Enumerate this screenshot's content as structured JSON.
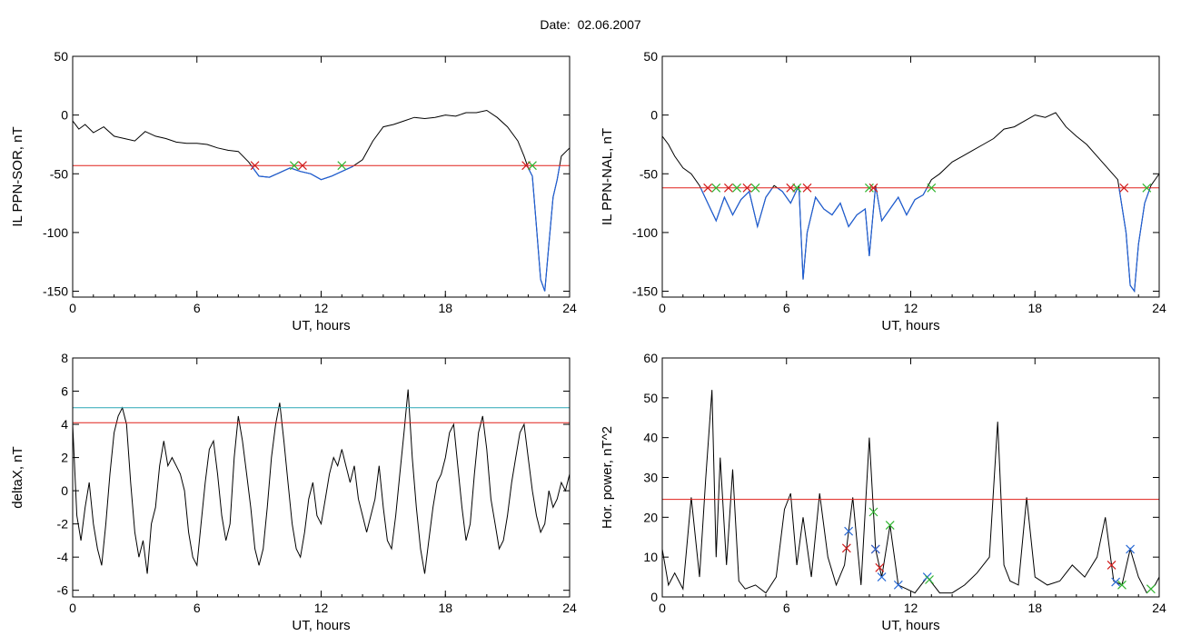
{
  "title": "Date:  02.06.2007",
  "colors": {
    "background": "#ffffff",
    "axis": "#000000",
    "signal": "#000000",
    "below_threshold": "#1f5fd6",
    "threshold_red": "#e0201a",
    "threshold_teal": "#2aa7b5",
    "marker_red": "#d01c1c",
    "marker_green": "#2fb52f",
    "marker_blue": "#2a6bd6"
  },
  "chart_data": [
    {
      "type": "line",
      "xlabel": "UT, hours",
      "ylabel": "IL PPN-SOR, nT",
      "xlim": [
        0,
        24
      ],
      "ylim": [
        -155,
        50
      ],
      "xticks": [
        0,
        6,
        12,
        18,
        24
      ],
      "xtick_labels": [
        "0",
        "6",
        "12",
        "18",
        "24"
      ],
      "yticks": [
        -150,
        -100,
        -50,
        0,
        50
      ],
      "ytick_labels": [
        "-150",
        "-100",
        "-50",
        "0",
        "50"
      ],
      "grid": false,
      "threshold": -43,
      "series": [
        {
          "x": [
            0,
            0.3,
            0.6,
            1,
            1.5,
            2,
            2.5,
            3,
            3.5,
            4,
            4.5,
            5,
            5.5,
            6,
            6.5,
            7,
            7.5,
            8,
            8.5,
            9,
            9.5,
            10,
            10.5,
            11,
            11.5,
            12,
            12.5,
            13,
            13.5,
            14,
            14.5,
            15,
            15.5,
            16,
            16.5,
            17,
            17.5,
            18,
            18.5,
            19,
            19.5,
            20,
            20.5,
            21,
            21.5,
            21.8,
            22,
            22.2,
            22.4,
            22.6,
            22.8,
            23,
            23.2,
            23.4,
            23.6,
            24
          ],
          "y": [
            -5,
            -12,
            -8,
            -15,
            -10,
            -18,
            -20,
            -22,
            -14,
            -18,
            -20,
            -23,
            -24,
            -24,
            -25,
            -28,
            -30,
            -31,
            -40,
            -52,
            -53,
            -49,
            -45,
            -48,
            -50,
            -55,
            -52,
            -48,
            -44,
            -38,
            -22,
            -10,
            -8,
            -5,
            -2,
            -3,
            -2,
            0,
            -1,
            2,
            2,
            4,
            -2,
            -10,
            -22,
            -35,
            -45,
            -52,
            -95,
            -140,
            -150,
            -110,
            -70,
            -55,
            -35,
            -28
          ]
        }
      ],
      "threshold_markers": [
        8.8,
        10.7,
        11.1,
        13.0,
        21.9,
        22.2
      ]
    },
    {
      "type": "line",
      "xlabel": "UT, hours",
      "ylabel": "IL PPN-NAL, nT",
      "xlim": [
        0,
        24
      ],
      "ylim": [
        -155,
        50
      ],
      "xticks": [
        0,
        6,
        12,
        18,
        24
      ],
      "xtick_labels": [
        "0",
        "6",
        "12",
        "18",
        "24"
      ],
      "yticks": [
        -150,
        -100,
        -50,
        0,
        50
      ],
      "ytick_labels": [
        "-150",
        "-100",
        "-50",
        "0",
        "50"
      ],
      "grid": false,
      "threshold": -62,
      "series": [
        {
          "x": [
            0,
            0.3,
            0.6,
            1,
            1.4,
            1.8,
            2.2,
            2.6,
            3,
            3.4,
            3.8,
            4.2,
            4.6,
            5,
            5.4,
            5.8,
            6.2,
            6.6,
            6.8,
            7,
            7.4,
            7.8,
            8.2,
            8.6,
            9,
            9.4,
            9.8,
            10,
            10.3,
            10.6,
            11,
            11.4,
            11.8,
            12.2,
            12.6,
            13,
            13.4,
            14,
            14.5,
            15,
            15.5,
            16,
            16.5,
            17,
            17.5,
            18,
            18.5,
            19,
            19.5,
            20,
            20.5,
            21,
            21.5,
            22,
            22.4,
            22.6,
            22.8,
            23,
            23.3,
            23.6,
            24
          ],
          "y": [
            -18,
            -25,
            -35,
            -45,
            -50,
            -60,
            -75,
            -90,
            -70,
            -85,
            -72,
            -65,
            -95,
            -70,
            -60,
            -65,
            -75,
            -60,
            -140,
            -100,
            -70,
            -80,
            -85,
            -75,
            -95,
            -85,
            -80,
            -120,
            -60,
            -90,
            -80,
            -70,
            -85,
            -72,
            -68,
            -55,
            -50,
            -40,
            -35,
            -30,
            -25,
            -20,
            -12,
            -10,
            -5,
            0,
            -2,
            2,
            -10,
            -18,
            -25,
            -35,
            -45,
            -55,
            -100,
            -145,
            -150,
            -110,
            -75,
            -60,
            -50
          ]
        }
      ],
      "threshold_markers": [
        2.2,
        2.6,
        3.2,
        3.6,
        4.1,
        4.5,
        6.2,
        6.5,
        7.0,
        10.0,
        10.2,
        13.0,
        22.3,
        23.4
      ]
    },
    {
      "type": "line",
      "xlabel": "UT, hours",
      "ylabel": "deltaX, nT",
      "xlim": [
        0,
        24
      ],
      "ylim": [
        -6.4,
        8
      ],
      "xticks": [
        0,
        6,
        12,
        18,
        24
      ],
      "xtick_labels": [
        "0",
        "6",
        "12",
        "18",
        "24"
      ],
      "yticks": [
        -6,
        -4,
        -2,
        0,
        2,
        4,
        6,
        8
      ],
      "ytick_labels": [
        "-6",
        "-4",
        "-2",
        "0",
        "2",
        "4",
        "6",
        "8"
      ],
      "grid": false,
      "thresholds": [
        5,
        4.1
      ],
      "series": [
        {
          "x": [
            0,
            0.2,
            0.4,
            0.6,
            0.8,
            1.0,
            1.2,
            1.4,
            1.6,
            1.8,
            2.0,
            2.2,
            2.4,
            2.6,
            2.8,
            3.0,
            3.2,
            3.4,
            3.6,
            3.8,
            4.0,
            4.2,
            4.4,
            4.6,
            4.8,
            5.0,
            5.2,
            5.4,
            5.6,
            5.8,
            6.0,
            6.2,
            6.4,
            6.6,
            6.8,
            7.0,
            7.2,
            7.4,
            7.6,
            7.8,
            8.0,
            8.2,
            8.4,
            8.6,
            8.8,
            9.0,
            9.2,
            9.4,
            9.6,
            9.8,
            10.0,
            10.2,
            10.4,
            10.6,
            10.8,
            11.0,
            11.2,
            11.4,
            11.6,
            11.8,
            12.0,
            12.2,
            12.4,
            12.6,
            12.8,
            13.0,
            13.2,
            13.4,
            13.6,
            13.8,
            14.0,
            14.2,
            14.4,
            14.6,
            14.8,
            15.0,
            15.2,
            15.4,
            15.6,
            15.8,
            16.0,
            16.2,
            16.4,
            16.6,
            16.8,
            17.0,
            17.2,
            17.4,
            17.6,
            17.8,
            18.0,
            18.2,
            18.4,
            18.6,
            18.8,
            19.0,
            19.2,
            19.4,
            19.6,
            19.8,
            20.0,
            20.2,
            20.4,
            20.6,
            20.8,
            21.0,
            21.2,
            21.4,
            21.6,
            21.8,
            22.0,
            22.2,
            22.4,
            22.6,
            22.8,
            23.0,
            23.2,
            23.4,
            23.6,
            23.8,
            24.0
          ],
          "y": [
            4.0,
            -1.5,
            -3.0,
            -1.0,
            0.5,
            -2.0,
            -3.5,
            -4.5,
            -2.0,
            1.0,
            3.5,
            4.5,
            5.0,
            4.0,
            0.5,
            -2.5,
            -4.0,
            -3.0,
            -5.0,
            -2.0,
            -1.0,
            1.5,
            3.0,
            1.5,
            2.0,
            1.5,
            1.0,
            0.0,
            -2.5,
            -4.0,
            -4.5,
            -2.0,
            0.5,
            2.5,
            3.0,
            1.0,
            -1.5,
            -3.0,
            -2.0,
            2.0,
            4.5,
            3.0,
            1.0,
            -1.0,
            -3.5,
            -4.5,
            -3.5,
            -1.0,
            2.0,
            4.0,
            5.3,
            3.0,
            0.5,
            -2.0,
            -3.5,
            -4.0,
            -2.5,
            -0.5,
            0.5,
            -1.5,
            -2.0,
            -0.5,
            1.0,
            2.0,
            1.5,
            2.5,
            1.5,
            0.5,
            1.5,
            -0.5,
            -1.5,
            -2.5,
            -1.5,
            -0.5,
            1.5,
            -1.0,
            -3.0,
            -3.5,
            -1.5,
            1.0,
            3.5,
            6.1,
            2.0,
            -1.0,
            -3.5,
            -5.0,
            -3.0,
            -1.0,
            0.5,
            1.0,
            2.0,
            3.5,
            4.0,
            1.5,
            -1.0,
            -3.0,
            -2.0,
            1.0,
            3.5,
            4.5,
            2.5,
            -0.5,
            -2.0,
            -3.5,
            -3.0,
            -1.5,
            0.5,
            2.0,
            3.5,
            4.0,
            2.0,
            0.0,
            -1.5,
            -2.5,
            -2.0,
            0.0,
            -1.0,
            -0.5,
            0.5,
            0.0,
            1.0
          ]
        }
      ]
    },
    {
      "type": "line",
      "xlabel": "UT, hours",
      "ylabel": "Hor. power, nT^2",
      "xlim": [
        0,
        24
      ],
      "ylim": [
        0,
        60
      ],
      "xticks": [
        0,
        6,
        12,
        18,
        24
      ],
      "xtick_labels": [
        "0",
        "6",
        "12",
        "18",
        "24"
      ],
      "yticks": [
        0,
        10,
        20,
        30,
        40,
        50,
        60
      ],
      "ytick_labels": [
        "0",
        "10",
        "20",
        "30",
        "40",
        "50",
        "60"
      ],
      "grid": false,
      "threshold": 24.5,
      "series": [
        {
          "x": [
            0,
            0.3,
            0.6,
            1.0,
            1.4,
            1.8,
            2.1,
            2.4,
            2.6,
            2.8,
            3.1,
            3.4,
            3.7,
            4.0,
            4.5,
            5.0,
            5.5,
            5.9,
            6.2,
            6.5,
            6.8,
            7.2,
            7.6,
            8.0,
            8.4,
            8.8,
            9.2,
            9.6,
            10.0,
            10.3,
            10.6,
            11.0,
            11.4,
            11.8,
            12.2,
            12.8,
            13.4,
            14.0,
            14.6,
            15.2,
            15.8,
            16.2,
            16.5,
            16.8,
            17.2,
            17.6,
            18.0,
            18.6,
            19.2,
            19.8,
            20.4,
            21.0,
            21.4,
            21.8,
            22.2,
            22.6,
            23.0,
            23.4,
            23.8,
            24.0
          ],
          "y": [
            12,
            3,
            6,
            2,
            25,
            5,
            30,
            52,
            10,
            35,
            8,
            32,
            4,
            2,
            3,
            1,
            5,
            22,
            26,
            8,
            20,
            5,
            26,
            10,
            3,
            8,
            25,
            3,
            40,
            12,
            5,
            18,
            3,
            2,
            1,
            5,
            1,
            1,
            3,
            6,
            10,
            44,
            8,
            4,
            3,
            25,
            5,
            3,
            4,
            8,
            5,
            10,
            20,
            4,
            3,
            12,
            5,
            1,
            3,
            5
          ]
        }
      ],
      "markers_red": [
        8.9,
        10.3,
        10.5,
        21.7
      ],
      "markers_blue": [
        9.0,
        10.3,
        10.6,
        11.4,
        12.8,
        21.9,
        22.6
      ],
      "markers_green": [
        10.2,
        11.0,
        12.9,
        22.2,
        23.6
      ]
    }
  ]
}
